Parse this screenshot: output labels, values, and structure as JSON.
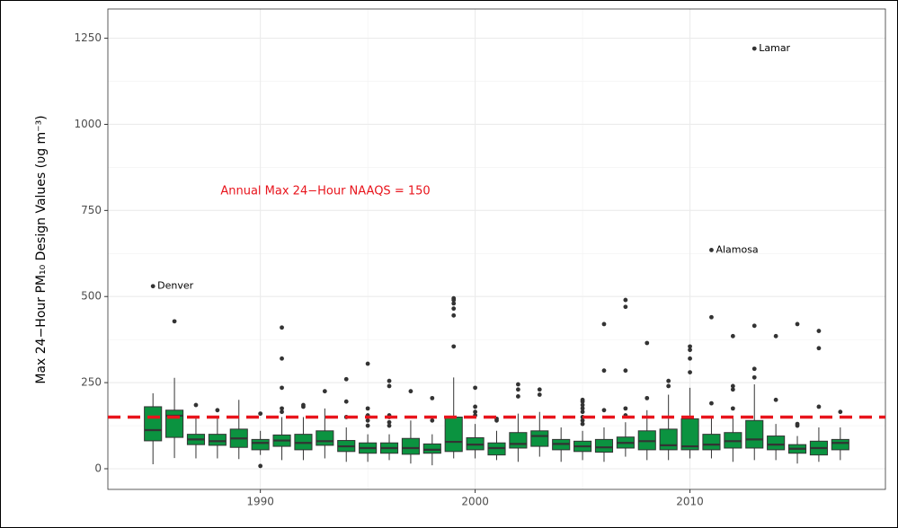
{
  "chart_data": {
    "type": "boxplot",
    "y_label": "Max 24−Hour PM₁₀ Design Values (υg m⁻³)",
    "x": [
      1985,
      1986,
      1987,
      1988,
      1989,
      1990,
      1991,
      1992,
      1993,
      1994,
      1995,
      1996,
      1997,
      1998,
      1999,
      2000,
      2001,
      2002,
      2003,
      2004,
      2005,
      2006,
      2007,
      2008,
      2009,
      2010,
      2011,
      2012,
      2013,
      2014,
      2015,
      2016,
      2017
    ],
    "min": [
      13,
      31,
      30,
      30,
      28,
      40,
      25,
      25,
      30,
      20,
      20,
      25,
      15,
      10,
      30,
      30,
      25,
      20,
      35,
      20,
      25,
      20,
      35,
      25,
      25,
      30,
      30,
      20,
      25,
      25,
      15,
      20,
      25
    ],
    "q1": [
      81,
      91,
      70,
      68,
      62,
      55,
      65,
      55,
      68,
      50,
      45,
      45,
      42,
      45,
      50,
      55,
      40,
      60,
      65,
      55,
      50,
      48,
      60,
      55,
      55,
      55,
      55,
      60,
      60,
      55,
      45,
      40,
      55
    ],
    "median": [
      112,
      154,
      85,
      80,
      88,
      75,
      82,
      75,
      80,
      65,
      60,
      60,
      60,
      55,
      78,
      70,
      60,
      72,
      95,
      72,
      65,
      62,
      75,
      80,
      68,
      65,
      70,
      80,
      85,
      70,
      58,
      60,
      75
    ],
    "q3": [
      180,
      170,
      100,
      100,
      115,
      85,
      98,
      100,
      110,
      82,
      75,
      75,
      88,
      72,
      150,
      90,
      75,
      105,
      110,
      85,
      80,
      85,
      92,
      110,
      115,
      145,
      100,
      105,
      140,
      95,
      70,
      80,
      85
    ],
    "max": [
      219,
      264,
      150,
      150,
      200,
      110,
      150,
      150,
      175,
      120,
      100,
      100,
      140,
      100,
      265,
      130,
      110,
      160,
      165,
      120,
      110,
      120,
      135,
      170,
      215,
      235,
      150,
      150,
      245,
      130,
      95,
      120,
      120
    ],
    "outliers": [
      [
        530
      ],
      [
        428
      ],
      [
        185
      ],
      [
        170
      ],
      [],
      [
        160,
        8
      ],
      [
        165,
        175,
        235,
        320,
        410
      ],
      [
        180,
        185
      ],
      [
        225
      ],
      [
        150,
        195,
        260
      ],
      [
        125,
        140,
        155,
        175,
        305
      ],
      [
        125,
        135,
        150,
        155,
        240,
        255
      ],
      [
        225
      ],
      [
        140,
        205
      ],
      [
        355,
        445,
        465,
        480,
        490,
        495
      ],
      [
        155,
        165,
        180,
        235
      ],
      [
        140,
        145
      ],
      [
        210,
        230,
        245
      ],
      [
        215,
        230
      ],
      [],
      [
        130,
        140,
        150,
        165,
        175,
        185,
        195,
        200
      ],
      [
        170,
        285,
        420
      ],
      [
        155,
        175,
        285,
        470,
        490
      ],
      [
        205,
        365
      ],
      [
        240,
        255
      ],
      [
        280,
        320,
        345,
        355
      ],
      [
        190,
        440,
        635
      ],
      [
        175,
        230,
        240,
        385
      ],
      [
        265,
        290,
        415,
        1220
      ],
      [
        200,
        385
      ],
      [
        125,
        130,
        420
      ],
      [
        180,
        350,
        400
      ],
      [
        165
      ]
    ],
    "box_color": "#0b9340",
    "annotations": [
      {
        "text": "Denver",
        "x": 1985,
        "y": 530
      },
      {
        "text": "Alamosa",
        "x": 2011,
        "y": 635
      },
      {
        "text": "Lamar",
        "x": 2013,
        "y": 1220
      }
    ],
    "hline": {
      "value": 150,
      "label": "Annual Max 24−Hour NAAQS = 150",
      "color": "#e8141c"
    },
    "xlim": [
      1982.9,
      2019.1
    ],
    "ylim": [
      -60,
      1335
    ],
    "xticks": [
      1990,
      2000,
      2010
    ],
    "yticks": [
      0,
      250,
      500,
      750,
      1000,
      1250
    ],
    "grid": true
  }
}
